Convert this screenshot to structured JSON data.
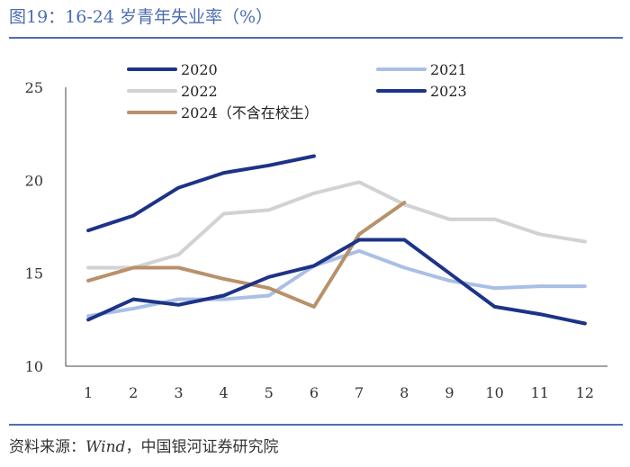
{
  "header": {
    "title": "图19：16-24 岁青年失业率（%）"
  },
  "footer": {
    "source_label": "资料来源：",
    "source_italic": "Wind",
    "source_rest": "，中国银河证券研究院"
  },
  "chart_data": {
    "type": "line",
    "title": "图19：16-24 岁青年失业率（%）",
    "xlabel": "",
    "ylabel": "",
    "categories": [
      "1",
      "2",
      "3",
      "4",
      "5",
      "6",
      "7",
      "8",
      "9",
      "10",
      "11",
      "12"
    ],
    "ylim": [
      10,
      25
    ],
    "yticks": [
      10,
      15,
      20,
      25
    ],
    "grid": false,
    "legend_position": "top",
    "series": [
      {
        "name": "2020",
        "color": "#1d3387",
        "values": [
          17.3,
          18.1,
          19.6,
          20.4,
          20.8,
          21.3,
          null,
          null,
          null,
          null,
          null,
          null
        ]
      },
      {
        "name": "2021",
        "color": "#a9bfe6",
        "values": [
          12.7,
          13.1,
          13.6,
          13.6,
          13.8,
          15.4,
          16.2,
          15.3,
          14.6,
          14.2,
          14.3,
          14.3
        ]
      },
      {
        "name": "2022",
        "color": "#d2d2d2",
        "values": [
          15.3,
          15.3,
          16.0,
          18.2,
          18.4,
          19.3,
          19.9,
          18.7,
          17.9,
          17.9,
          17.1,
          16.7
        ]
      },
      {
        "name": "2023",
        "color": "#1d3387",
        "values": [
          12.5,
          13.6,
          13.3,
          13.8,
          14.8,
          15.4,
          16.8,
          16.8,
          15.0,
          13.2,
          12.8,
          12.3
        ]
      },
      {
        "name": "2024（不含在校生）",
        "color": "#b8916a",
        "values": [
          14.6,
          15.3,
          15.3,
          14.7,
          14.2,
          13.2,
          17.1,
          18.8,
          null,
          null,
          null,
          null
        ]
      }
    ]
  }
}
